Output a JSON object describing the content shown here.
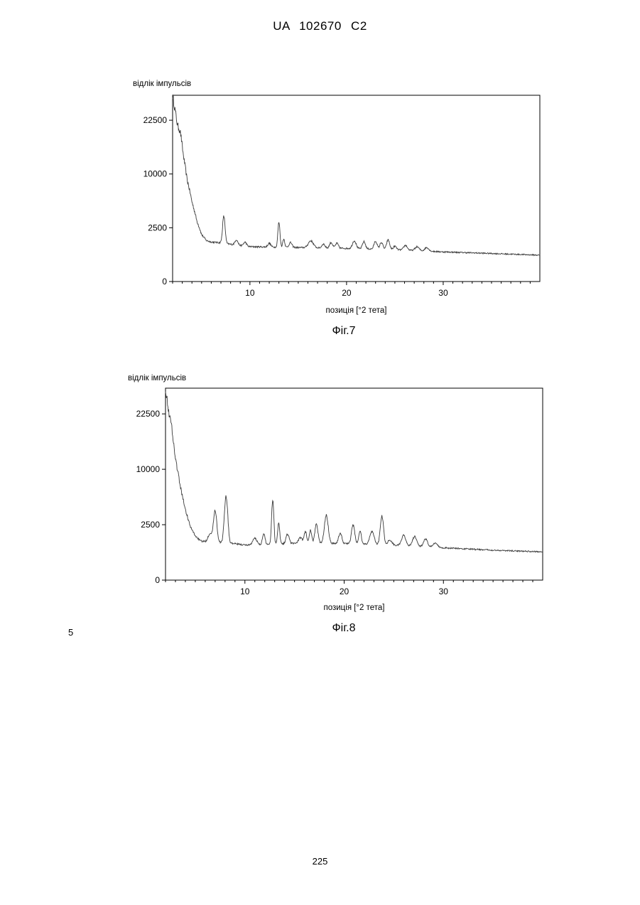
{
  "header": "UA   102670   C2",
  "line_number": "5",
  "page_number": "225",
  "colors": {
    "line": "#3a3a3a",
    "frame": "#000000"
  },
  "chart_data": [
    {
      "type": "line",
      "caption": "Фіг.7",
      "ylabel": "відлік імпульсів",
      "xlabel": "позиція [°2 тета]",
      "xlim": [
        2,
        40
      ],
      "xticks": [
        10,
        20,
        30
      ],
      "yticks": [
        0,
        2500,
        10000,
        22500
      ],
      "y_scale": "sqrt",
      "grid": false,
      "baseline": [
        [
          2,
          30000
        ],
        [
          2.5,
          21000
        ],
        [
          3,
          15000
        ],
        [
          3.5,
          9000
        ],
        [
          4,
          5500
        ],
        [
          4.5,
          3200
        ],
        [
          5,
          1900
        ],
        [
          5.5,
          1450
        ],
        [
          6,
          1350
        ],
        [
          7,
          1300
        ],
        [
          8,
          1200
        ],
        [
          10,
          1050
        ],
        [
          15,
          1000
        ],
        [
          20,
          950
        ],
        [
          25,
          880
        ],
        [
          30,
          760
        ],
        [
          35,
          680
        ],
        [
          40,
          600
        ]
      ],
      "peaks": [
        {
          "x": 2.8,
          "h": 1800,
          "w": 0.15
        },
        {
          "x": 7.3,
          "h": 2400,
          "w": 0.12
        },
        {
          "x": 8.6,
          "h": 350,
          "w": 0.15
        },
        {
          "x": 9.5,
          "h": 250,
          "w": 0.15
        },
        {
          "x": 12.0,
          "h": 230,
          "w": 0.15
        },
        {
          "x": 13.0,
          "h": 2000,
          "w": 0.1
        },
        {
          "x": 13.5,
          "h": 550,
          "w": 0.1
        },
        {
          "x": 14.2,
          "h": 300,
          "w": 0.15
        },
        {
          "x": 16.3,
          "h": 450,
          "w": 0.25
        },
        {
          "x": 17.6,
          "h": 250,
          "w": 0.15
        },
        {
          "x": 18.4,
          "h": 350,
          "w": 0.15
        },
        {
          "x": 19.0,
          "h": 300,
          "w": 0.15
        },
        {
          "x": 20.8,
          "h": 500,
          "w": 0.18
        },
        {
          "x": 21.8,
          "h": 450,
          "w": 0.15
        },
        {
          "x": 23.0,
          "h": 500,
          "w": 0.15
        },
        {
          "x": 23.6,
          "h": 420,
          "w": 0.15
        },
        {
          "x": 24.3,
          "h": 600,
          "w": 0.15
        },
        {
          "x": 25.0,
          "h": 200,
          "w": 0.15
        },
        {
          "x": 26.1,
          "h": 280,
          "w": 0.18
        },
        {
          "x": 27.3,
          "h": 220,
          "w": 0.2
        },
        {
          "x": 28.3,
          "h": 200,
          "w": 0.2
        }
      ]
    },
    {
      "type": "line",
      "caption": "Фіг.8",
      "ylabel": "відлік імпульсів",
      "xlabel": "позиція [°2 тета]",
      "xlim": [
        2,
        40
      ],
      "xticks": [
        10,
        20,
        30
      ],
      "yticks": [
        0,
        2500,
        10000,
        22500
      ],
      "y_scale": "sqrt",
      "grid": false,
      "baseline": [
        [
          2,
          30000
        ],
        [
          2.5,
          19000
        ],
        [
          3,
          12000
        ],
        [
          3.5,
          7000
        ],
        [
          4,
          4000
        ],
        [
          4.5,
          2300
        ],
        [
          5,
          1600
        ],
        [
          5.5,
          1250
        ],
        [
          6,
          1200
        ],
        [
          8,
          1150
        ],
        [
          10,
          1000
        ],
        [
          15,
          1100
        ],
        [
          20,
          1100
        ],
        [
          25,
          1000
        ],
        [
          30,
          850
        ],
        [
          35,
          730
        ],
        [
          40,
          650
        ]
      ],
      "peaks": [
        {
          "x": 2.6,
          "h": 2000,
          "w": 0.15
        },
        {
          "x": 6.5,
          "h": 600,
          "w": 0.2
        },
        {
          "x": 7.0,
          "h": 2800,
          "w": 0.15
        },
        {
          "x": 8.1,
          "h": 4600,
          "w": 0.15
        },
        {
          "x": 11.0,
          "h": 400,
          "w": 0.2
        },
        {
          "x": 11.9,
          "h": 700,
          "w": 0.12
        },
        {
          "x": 12.8,
          "h": 4200,
          "w": 0.1
        },
        {
          "x": 13.4,
          "h": 1600,
          "w": 0.1
        },
        {
          "x": 14.3,
          "h": 650,
          "w": 0.15
        },
        {
          "x": 15.6,
          "h": 350,
          "w": 0.2
        },
        {
          "x": 16.1,
          "h": 800,
          "w": 0.12
        },
        {
          "x": 16.6,
          "h": 900,
          "w": 0.12
        },
        {
          "x": 17.2,
          "h": 1400,
          "w": 0.15
        },
        {
          "x": 18.2,
          "h": 2300,
          "w": 0.18
        },
        {
          "x": 19.6,
          "h": 700,
          "w": 0.15
        },
        {
          "x": 20.9,
          "h": 1400,
          "w": 0.15
        },
        {
          "x": 21.6,
          "h": 900,
          "w": 0.12
        },
        {
          "x": 22.8,
          "h": 900,
          "w": 0.2
        },
        {
          "x": 23.8,
          "h": 2300,
          "w": 0.15
        },
        {
          "x": 24.6,
          "h": 300,
          "w": 0.2
        },
        {
          "x": 26.0,
          "h": 650,
          "w": 0.2
        },
        {
          "x": 27.1,
          "h": 600,
          "w": 0.2
        },
        {
          "x": 28.2,
          "h": 450,
          "w": 0.2
        },
        {
          "x": 29.2,
          "h": 250,
          "w": 0.2
        }
      ]
    }
  ]
}
